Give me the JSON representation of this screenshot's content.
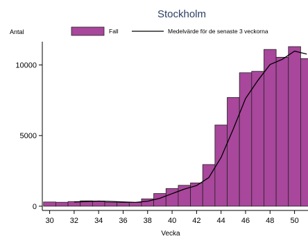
{
  "chart_data": {
    "type": "bar",
    "title": "Stockholm",
    "ylabel": "Antal",
    "xlabel": "Vecka",
    "x": [
      30,
      31,
      32,
      33,
      34,
      35,
      36,
      37,
      38,
      39,
      40,
      41,
      42,
      43,
      44,
      45,
      46,
      47,
      48,
      49,
      50,
      51
    ],
    "xticks": [
      30,
      32,
      34,
      36,
      38,
      40,
      42,
      44,
      46,
      48,
      50
    ],
    "xlim": [
      29.4,
      51.1
    ],
    "yticks": [
      0,
      5000,
      10000
    ],
    "ylim": [
      -300,
      11650
    ],
    "grid": false,
    "legend_position": "top",
    "series": [
      {
        "name": "Fall",
        "type": "bar",
        "color": "#a8479b",
        "values": [
          300,
          280,
          330,
          380,
          370,
          280,
          260,
          270,
          520,
          900,
          1250,
          1480,
          1650,
          2950,
          5750,
          7700,
          9450,
          9550,
          11100,
          10550,
          11300,
          10450
        ]
      },
      {
        "name": "Medelvärde för de senaste 3 veckorna",
        "type": "line",
        "color": "#000000",
        "values": [
          null,
          null,
          300,
          330,
          360,
          340,
          300,
          270,
          350,
          560,
          890,
          1210,
          1460,
          2030,
          3450,
          5470,
          7630,
          8900,
          10030,
          10400,
          10980,
          10770
        ]
      }
    ]
  }
}
